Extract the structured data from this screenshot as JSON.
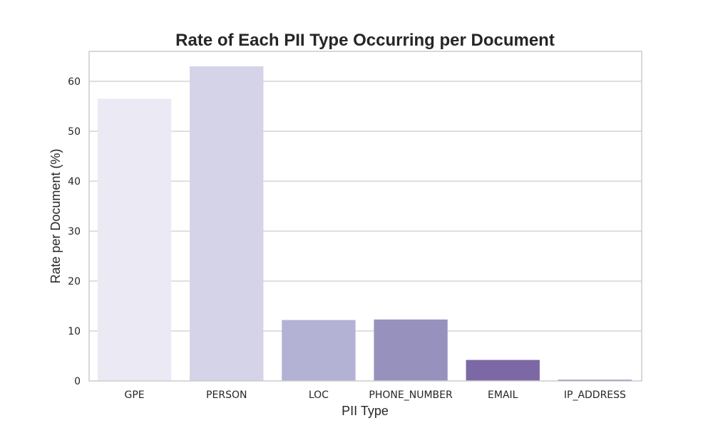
{
  "chart_data": {
    "type": "bar",
    "title": "Rate of Each PII Type Occurring per Document",
    "xlabel": "PII Type",
    "ylabel": "Rate per Document (%)",
    "categories": [
      "GPE",
      "PERSON",
      "LOC",
      "PHONE_NUMBER",
      "EMAIL",
      "IP_ADDRESS"
    ],
    "values": [
      56.5,
      63.0,
      12.2,
      12.3,
      4.2,
      0.2
    ],
    "colors": [
      "#ebe9f3",
      "#d4d3e7",
      "#b3b2d4",
      "#9692bd",
      "#7b68a5",
      "#5b3d90"
    ],
    "ylim": [
      0,
      66
    ],
    "yticks": [
      0,
      10,
      20,
      30,
      40,
      50,
      60
    ],
    "grid": true,
    "grid_color": "#cccccc",
    "spine_color": "#cccccc"
  }
}
